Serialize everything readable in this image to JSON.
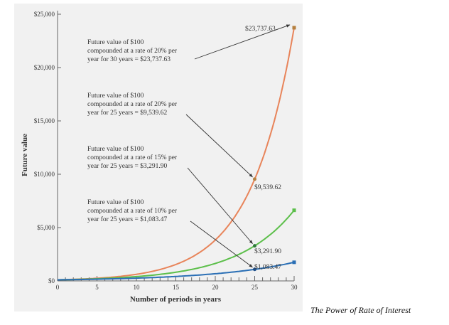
{
  "caption": "The Power of Rate of Interest",
  "chart_data": {
    "type": "line",
    "xlabel": "Number of periods in years",
    "ylabel": "Future value",
    "xlim": [
      0,
      30
    ],
    "ylim": [
      0,
      25000
    ],
    "x_ticks": [
      "0",
      "5",
      "10",
      "15",
      "20",
      "25",
      "30"
    ],
    "y_ticks": [
      "$0",
      "$5,000",
      "$10,000",
      "$15,000",
      "$20,000",
      "$25,000"
    ],
    "x": [
      0,
      5,
      10,
      15,
      20,
      25,
      30
    ],
    "series": [
      {
        "color": "#e8845a",
        "values": [
          100,
          248.83,
          619.17,
          1540.7,
          3833.76,
          9539.62,
          23737.63
        ]
      },
      {
        "color": "#5cbf4a",
        "values": [
          100,
          201.14,
          404.56,
          813.71,
          1636.65,
          3291.9,
          6621.18
        ]
      },
      {
        "color": "#2a6fb5",
        "values": [
          100,
          161.05,
          259.37,
          417.72,
          672.75,
          1083.47,
          1744.94
        ]
      }
    ],
    "annotations": [
      {
        "lines": [
          "Future value of $100",
          "compounded at a rate of 20% per",
          "year for 30 years = $23,737.63"
        ],
        "target_x": 30,
        "target_y": 23737.63,
        "point_label": "$23,737.63"
      },
      {
        "lines": [
          "Future value of $100",
          "compounded at a rate of 20% per",
          "year for 25 years = $9,539.62"
        ],
        "target_x": 25,
        "target_y": 9539.62,
        "point_label": "$9,539.62"
      },
      {
        "lines": [
          "Future value of $100",
          "compounded at a rate of 15% per",
          "year for 25 years = $3,291.90"
        ],
        "target_x": 25,
        "target_y": 3291.9,
        "point_label": "$3,291.90"
      },
      {
        "lines": [
          "Future value of $100",
          "compounded at a rate of 10% per",
          "year for 25 years = $1,083.47"
        ],
        "target_x": 25,
        "target_y": 1083.47,
        "point_label": "$1,083.47"
      }
    ],
    "grid": false,
    "legend": "none"
  }
}
